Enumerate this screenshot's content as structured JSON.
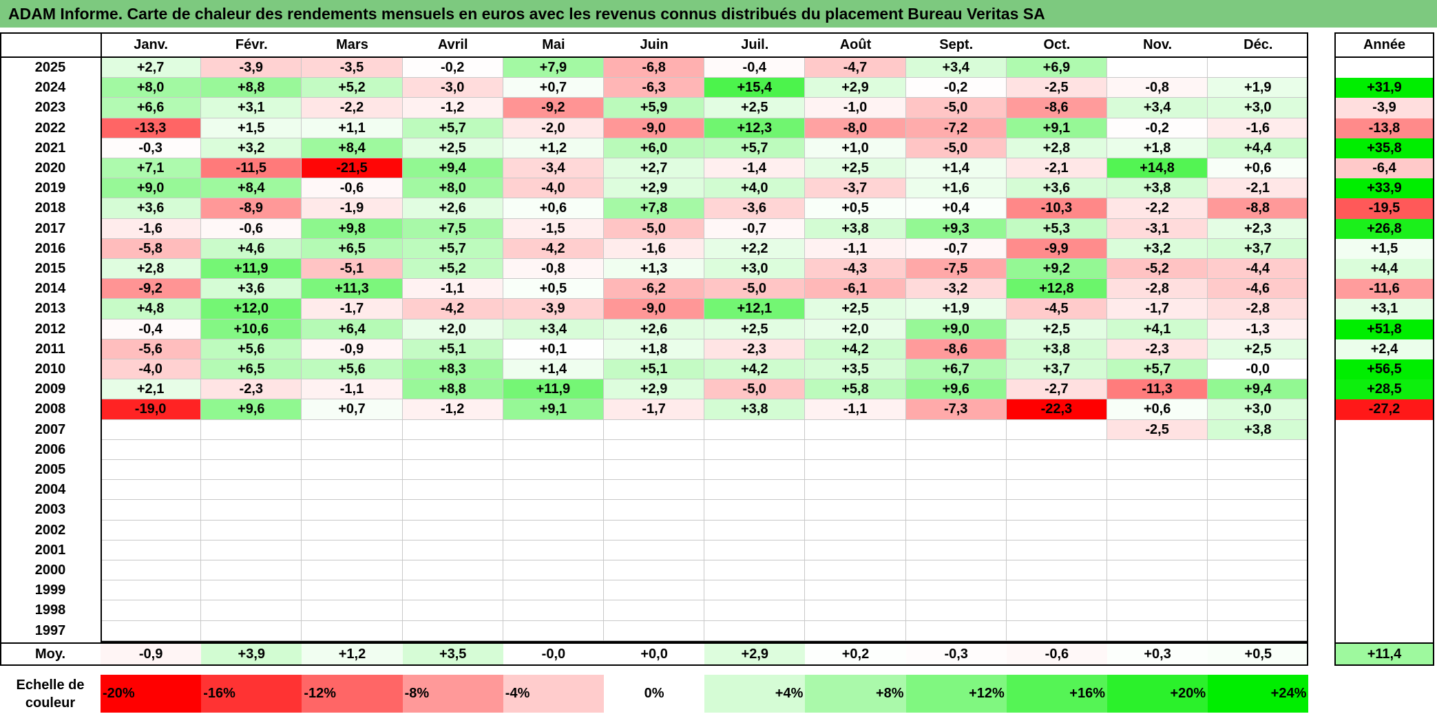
{
  "title": "ADAM Informe. Carte de chaleur des rendements mensuels en euros avec les revenus connus distribués du placement Bureau Veritas SA",
  "chart_data": {
    "type": "heatmap",
    "months": [
      "Janv.",
      "Févr.",
      "Mars",
      "Avril",
      "Mai",
      "Juin",
      "Juil.",
      "Août",
      "Sept.",
      "Oct.",
      "Nov.",
      "Déc."
    ],
    "year_header": "Année",
    "years": [
      "2025",
      "2024",
      "2023",
      "2022",
      "2021",
      "2020",
      "2019",
      "2018",
      "2017",
      "2016",
      "2015",
      "2014",
      "2013",
      "2012",
      "2011",
      "2010",
      "2009",
      "2008",
      "2007",
      "2006",
      "2005",
      "2004",
      "2003",
      "2002",
      "2001",
      "2000",
      "1999",
      "1998",
      "1997"
    ],
    "values": [
      [
        "+2,7",
        "-3,9",
        "-3,5",
        "-0,2",
        "+7,9",
        "-6,8",
        "-0,4",
        "-4,7",
        "+3,4",
        "+6,9",
        "",
        ""
      ],
      [
        "+8,0",
        "+8,8",
        "+5,2",
        "-3,0",
        "+0,7",
        "-6,3",
        "+15,4",
        "+2,9",
        "-0,2",
        "-2,5",
        "-0,8",
        "+1,9"
      ],
      [
        "+6,6",
        "+3,1",
        "-2,2",
        "-1,2",
        "-9,2",
        "+5,9",
        "+2,5",
        "-1,0",
        "-5,0",
        "-8,6",
        "+3,4",
        "+3,0"
      ],
      [
        "-13,3",
        "+1,5",
        "+1,1",
        "+5,7",
        "-2,0",
        "-9,0",
        "+12,3",
        "-8,0",
        "-7,2",
        "+9,1",
        "-0,2",
        "-1,6"
      ],
      [
        "-0,3",
        "+3,2",
        "+8,4",
        "+2,5",
        "+1,2",
        "+6,0",
        "+5,7",
        "+1,0",
        "-5,0",
        "+2,8",
        "+1,8",
        "+4,4"
      ],
      [
        "+7,1",
        "-11,5",
        "-21,5",
        "+9,4",
        "-3,4",
        "+2,7",
        "-1,4",
        "+2,5",
        "+1,4",
        "-2,1",
        "+14,8",
        "+0,6"
      ],
      [
        "+9,0",
        "+8,4",
        "-0,6",
        "+8,0",
        "-4,0",
        "+2,9",
        "+4,0",
        "-3,7",
        "+1,6",
        "+3,6",
        "+3,8",
        "-2,1"
      ],
      [
        "+3,6",
        "-8,9",
        "-1,9",
        "+2,6",
        "+0,6",
        "+7,8",
        "-3,6",
        "+0,5",
        "+0,4",
        "-10,3",
        "-2,2",
        "-8,8"
      ],
      [
        "-1,6",
        "-0,6",
        "+9,8",
        "+7,5",
        "-1,5",
        "-5,0",
        "-0,7",
        "+3,8",
        "+9,3",
        "+5,3",
        "-3,1",
        "+2,3"
      ],
      [
        "-5,8",
        "+4,6",
        "+6,5",
        "+5,7",
        "-4,2",
        "-1,6",
        "+2,2",
        "-1,1",
        "-0,7",
        "-9,9",
        "+3,2",
        "+3,7"
      ],
      [
        "+2,8",
        "+11,9",
        "-5,1",
        "+5,2",
        "-0,8",
        "+1,3",
        "+3,0",
        "-4,3",
        "-7,5",
        "+9,2",
        "-5,2",
        "-4,4"
      ],
      [
        "-9,2",
        "+3,6",
        "+11,3",
        "-1,1",
        "+0,5",
        "-6,2",
        "-5,0",
        "-6,1",
        "-3,2",
        "+12,8",
        "-2,8",
        "-4,6"
      ],
      [
        "+4,8",
        "+12,0",
        "-1,7",
        "-4,2",
        "-3,9",
        "-9,0",
        "+12,1",
        "+2,5",
        "+1,9",
        "-4,5",
        "-1,7",
        "-2,8"
      ],
      [
        "-0,4",
        "+10,6",
        "+6,4",
        "+2,0",
        "+3,4",
        "+2,6",
        "+2,5",
        "+2,0",
        "+9,0",
        "+2,5",
        "+4,1",
        "-1,3"
      ],
      [
        "-5,6",
        "+5,6",
        "-0,9",
        "+5,1",
        "+0,1",
        "+1,8",
        "-2,3",
        "+4,2",
        "-8,6",
        "+3,8",
        "-2,3",
        "+2,5"
      ],
      [
        "-4,0",
        "+6,5",
        "+5,6",
        "+8,3",
        "+1,4",
        "+5,1",
        "+4,2",
        "+3,5",
        "+6,7",
        "+3,7",
        "+5,7",
        "-0,0"
      ],
      [
        "+2,1",
        "-2,3",
        "-1,1",
        "+8,8",
        "+11,9",
        "+2,9",
        "-5,0",
        "+5,8",
        "+9,6",
        "-2,7",
        "-11,3",
        "+9,4"
      ],
      [
        "-19,0",
        "+9,6",
        "+0,7",
        "-1,2",
        "+9,1",
        "-1,7",
        "+3,8",
        "-1,1",
        "-7,3",
        "-22,3",
        "+0,6",
        "+3,0"
      ],
      [
        "",
        "",
        "",
        "",
        "",
        "",
        "",
        "",
        "",
        "",
        "-2,5",
        "+3,8"
      ],
      [
        "",
        "",
        "",
        "",
        "",
        "",
        "",
        "",
        "",
        "",
        "",
        ""
      ],
      [
        "",
        "",
        "",
        "",
        "",
        "",
        "",
        "",
        "",
        "",
        "",
        ""
      ],
      [
        "",
        "",
        "",
        "",
        "",
        "",
        "",
        "",
        "",
        "",
        "",
        ""
      ],
      [
        "",
        "",
        "",
        "",
        "",
        "",
        "",
        "",
        "",
        "",
        "",
        ""
      ],
      [
        "",
        "",
        "",
        "",
        "",
        "",
        "",
        "",
        "",
        "",
        "",
        ""
      ],
      [
        "",
        "",
        "",
        "",
        "",
        "",
        "",
        "",
        "",
        "",
        "",
        ""
      ],
      [
        "",
        "",
        "",
        "",
        "",
        "",
        "",
        "",
        "",
        "",
        "",
        ""
      ],
      [
        "",
        "",
        "",
        "",
        "",
        "",
        "",
        "",
        "",
        "",
        "",
        ""
      ],
      [
        "",
        "",
        "",
        "",
        "",
        "",
        "",
        "",
        "",
        "",
        "",
        ""
      ],
      [
        "",
        "",
        "",
        "",
        "",
        "",
        "",
        "",
        "",
        "",
        "",
        ""
      ]
    ],
    "annual": [
      "",
      "+31,9",
      "-3,9",
      "-13,8",
      "+35,8",
      "-6,4",
      "+33,9",
      "-19,5",
      "+26,8",
      "+1,5",
      "+4,4",
      "-11,6",
      "+3,1",
      "+51,8",
      "+2,4",
      "+56,5",
      "+28,5",
      "-27,2",
      "",
      "",
      "",
      "",
      "",
      "",
      "",
      "",
      "",
      "",
      ""
    ],
    "average_label": "Moy.",
    "averages": [
      "-0,9",
      "+3,9",
      "+1,2",
      "+3,5",
      "-0,0",
      "+0,0",
      "+2,9",
      "+0,2",
      "-0,3",
      "-0,6",
      "+0,3",
      "+0,5"
    ],
    "average_annual": "+11,4",
    "legend_label_line1": "Echelle de",
    "legend_label_line2": "couleur",
    "legend": [
      "-20%",
      "-16%",
      "-12%",
      "-8%",
      "-4%",
      "0%",
      "+4%",
      "+8%",
      "+12%",
      "+16%",
      "+20%",
      "+24%"
    ],
    "colors": {
      "neg_strong": "#ff0000",
      "pos_strong": "#00ee00",
      "neutral": "#ffffff",
      "title_bg": "#7dc97f"
    }
  }
}
